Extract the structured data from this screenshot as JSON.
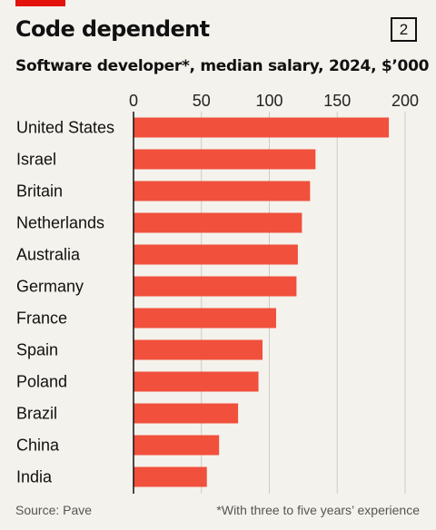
{
  "header": {
    "title": "Code dependent",
    "badge": "2",
    "subtitle": "Software developer*, median salary, 2024, $’000"
  },
  "footer": {
    "source": "Source: Pave",
    "note": "*With three to five years’ experience"
  },
  "colors": {
    "bar": "#f0503c",
    "accent": "#e3120b",
    "background": "#f4f2ec",
    "gridline": "#cfcac3",
    "axis": "#111111"
  },
  "chart_data": {
    "type": "bar",
    "orientation": "horizontal",
    "categories": [
      "United States",
      "Israel",
      "Britain",
      "Netherlands",
      "Australia",
      "Germany",
      "France",
      "Spain",
      "Poland",
      "Brazil",
      "China",
      "India"
    ],
    "values": [
      188,
      134,
      130,
      124,
      121,
      120,
      105,
      95,
      92,
      77,
      63,
      54
    ],
    "xlim": [
      0,
      200
    ],
    "xticks": [
      0,
      50,
      100,
      150,
      200
    ],
    "tick_labels": [
      "0",
      "50",
      "100",
      "150",
      "200"
    ],
    "grid": true,
    "xlabel": "",
    "ylabel": ""
  }
}
